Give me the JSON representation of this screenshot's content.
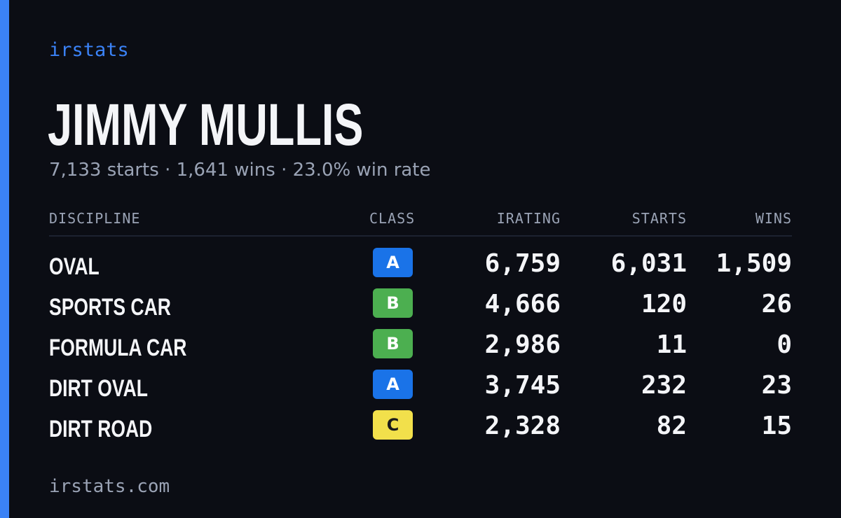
{
  "brand": "irstats",
  "driver": {
    "name": "JIMMY MULLIS",
    "summary": "7,133 starts · 1,641 wins · 23.0% win rate"
  },
  "table": {
    "headers": {
      "discipline": "DISCIPLINE",
      "class": "CLASS",
      "irating": "IRATING",
      "starts": "STARTS",
      "wins": "WINS"
    },
    "rows": [
      {
        "discipline": "OVAL",
        "class": "A",
        "class_color": "#1a73e8",
        "class_text_color": "#ffffff",
        "irating": "6,759",
        "starts": "6,031",
        "wins": "1,509"
      },
      {
        "discipline": "SPORTS CAR",
        "class": "B",
        "class_color": "#4caf50",
        "class_text_color": "#ffffff",
        "irating": "4,666",
        "starts": "120",
        "wins": "26"
      },
      {
        "discipline": "FORMULA CAR",
        "class": "B",
        "class_color": "#4caf50",
        "class_text_color": "#ffffff",
        "irating": "2,986",
        "starts": "11",
        "wins": "0"
      },
      {
        "discipline": "DIRT OVAL",
        "class": "A",
        "class_color": "#1a73e8",
        "class_text_color": "#ffffff",
        "irating": "3,745",
        "starts": "232",
        "wins": "23"
      },
      {
        "discipline": "DIRT ROAD",
        "class": "C",
        "class_color": "#f2e04b",
        "class_text_color": "#1a1a1a",
        "irating": "2,328",
        "starts": "82",
        "wins": "15"
      }
    ]
  },
  "footer": "irstats.com",
  "colors": {
    "accent": "#3b82f6",
    "background": "#0b0d14",
    "text": "#f4f5f8",
    "muted": "#9aa3b5"
  }
}
